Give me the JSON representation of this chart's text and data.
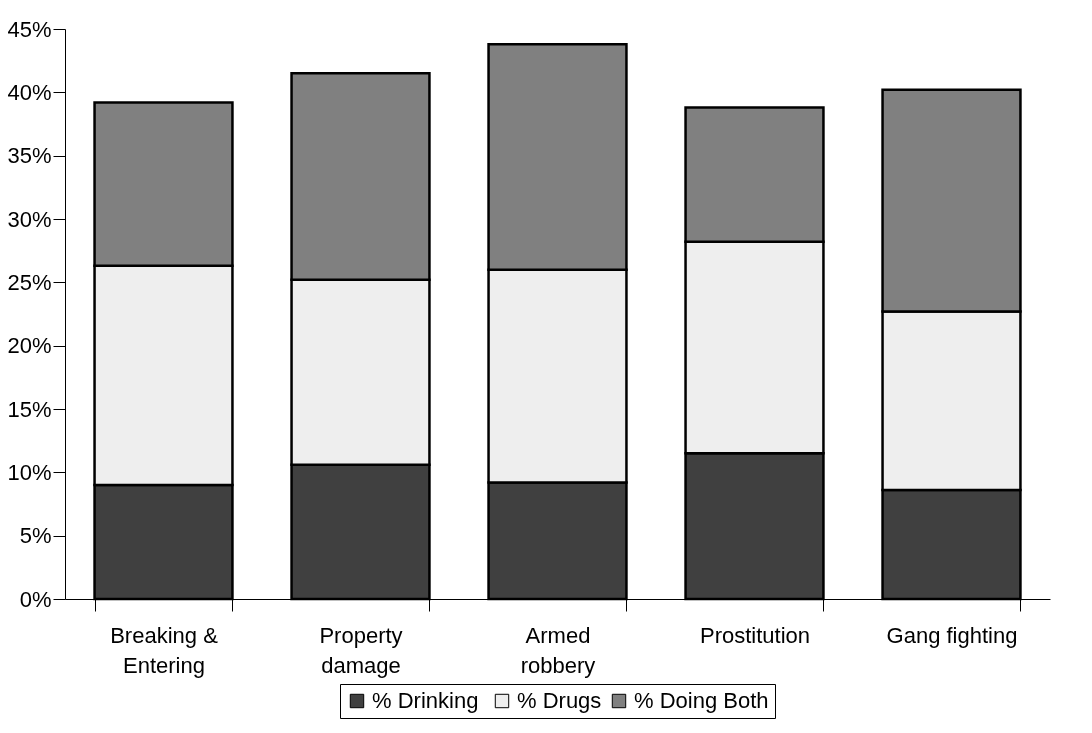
{
  "chart_data": {
    "type": "bar",
    "stacked": true,
    "categories": [
      "Breaking &\nEntering",
      "Property\ndamage",
      "Armed\nrobbery",
      "Prostitution",
      "Gang fighting"
    ],
    "series": [
      {
        "name": "%  Drinking",
        "color": "#404040",
        "values": [
          9.0,
          10.6,
          9.2,
          11.5,
          8.6
        ]
      },
      {
        "name": "% Drugs",
        "color": "#eeeeee",
        "values": [
          17.3,
          14.6,
          16.8,
          16.7,
          14.1
        ]
      },
      {
        "name": "% Doing Both",
        "color": "#808080",
        "values": [
          12.9,
          16.3,
          17.8,
          10.6,
          17.5
        ]
      }
    ],
    "ylim": [
      0,
      45
    ],
    "yticks": [
      {
        "value": 0,
        "label": "0%"
      },
      {
        "value": 5,
        "label": "5%"
      },
      {
        "value": 10,
        "label": "10%"
      },
      {
        "value": 15,
        "label": "15%"
      },
      {
        "value": 20,
        "label": "20%"
      },
      {
        "value": 25,
        "label": "25%"
      },
      {
        "value": 30,
        "label": "30%"
      },
      {
        "value": 35,
        "label": "35%"
      },
      {
        "value": 40,
        "label": "40%"
      },
      {
        "value": 45,
        "label": "45%"
      }
    ],
    "grid": false,
    "legend": "bottom"
  }
}
